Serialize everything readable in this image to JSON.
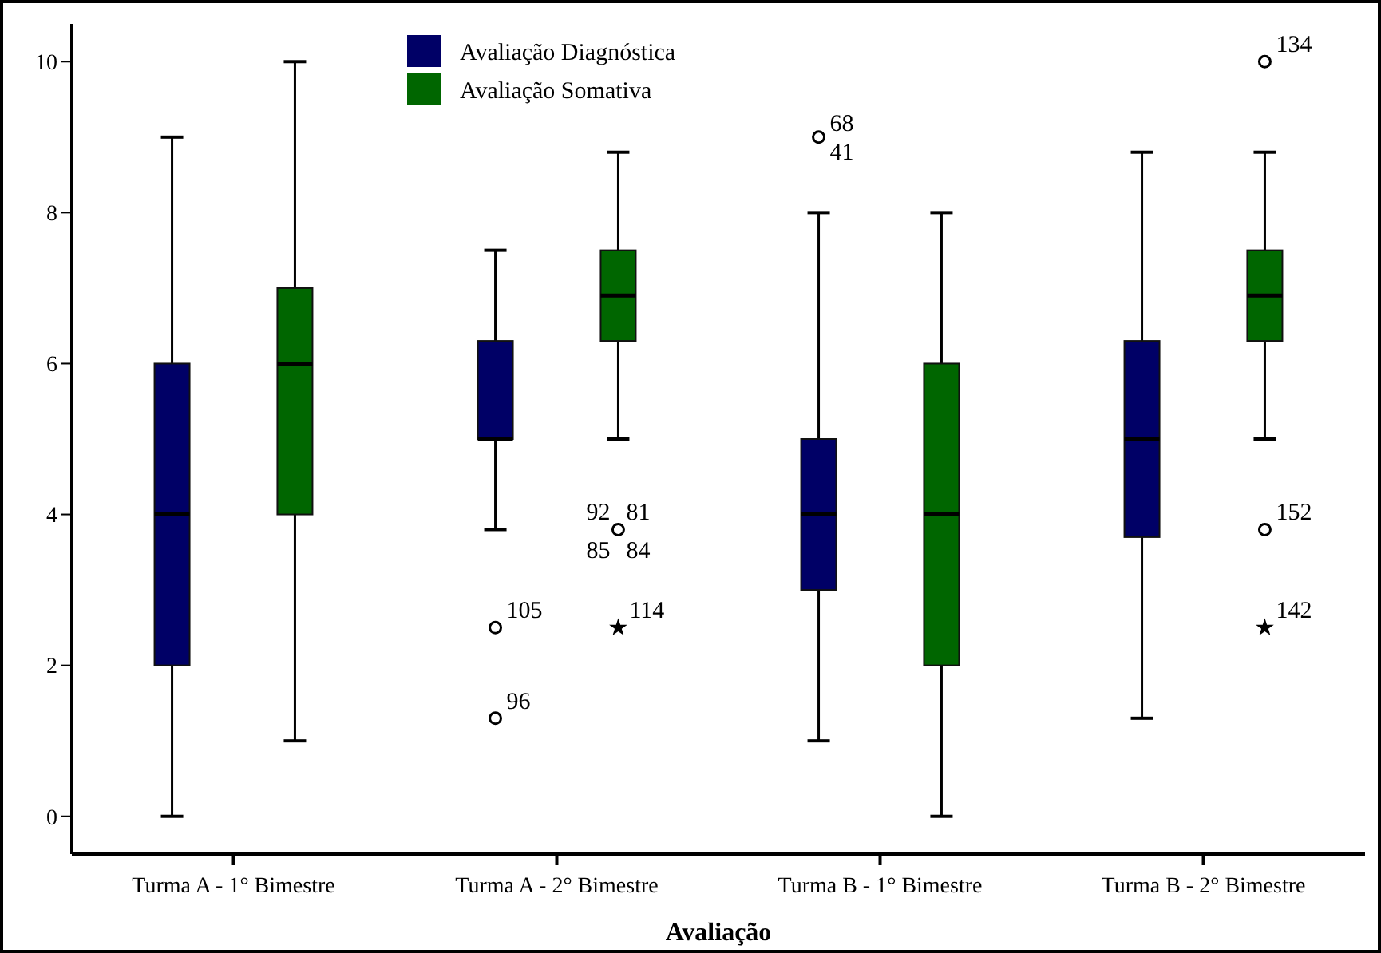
{
  "chart_data": {
    "type": "box",
    "xlabel": "Avaliação",
    "categories": [
      "Turma A - 1° Bimestre",
      "Turma A - 2° Bimestre",
      "Turma B - 1° Bimestre",
      "Turma B - 2° Bimestre"
    ],
    "ylim": [
      -0.5,
      10.5
    ],
    "yticks": [
      0,
      2,
      4,
      6,
      8,
      10
    ],
    "legend": "top",
    "grid": false,
    "series": [
      {
        "name": "Avaliação Diagnóstica",
        "color": "#000066",
        "boxes": [
          {
            "low": 0,
            "q1": 2,
            "median": 4,
            "q3": 6,
            "high": 9
          },
          {
            "low": 3.8,
            "q1": 5,
            "median": 5,
            "q3": 6.3,
            "high": 7.5,
            "outliers": [
              2.5,
              1.3
            ]
          },
          {
            "low": 1,
            "q1": 3,
            "median": 4,
            "q3": 5,
            "high": 8,
            "outliers": [
              9
            ]
          },
          {
            "low": 1.3,
            "q1": 3.7,
            "median": 5,
            "q3": 6.3,
            "high": 8.8
          }
        ]
      },
      {
        "name": "Avaliação Somativa",
        "color": "#006600",
        "boxes": [
          {
            "low": 1,
            "q1": 4,
            "median": 6,
            "q3": 7,
            "high": 10
          },
          {
            "low": 5,
            "q1": 6.3,
            "median": 6.9,
            "q3": 7.5,
            "high": 8.8,
            "outliers": [
              3.8,
              2.5
            ]
          },
          {
            "low": 0,
            "q1": 2,
            "median": 4,
            "q3": 6,
            "high": 8
          },
          {
            "low": 5,
            "q1": 6.3,
            "median": 6.9,
            "q3": 7.5,
            "high": 8.8,
            "outliers": [
              10,
              3.8,
              2.5
            ]
          }
        ]
      }
    ],
    "annotations": [
      "105",
      "96",
      "68\n41",
      "92 81\n85 84",
      "114",
      "134",
      "152",
      "142"
    ]
  }
}
